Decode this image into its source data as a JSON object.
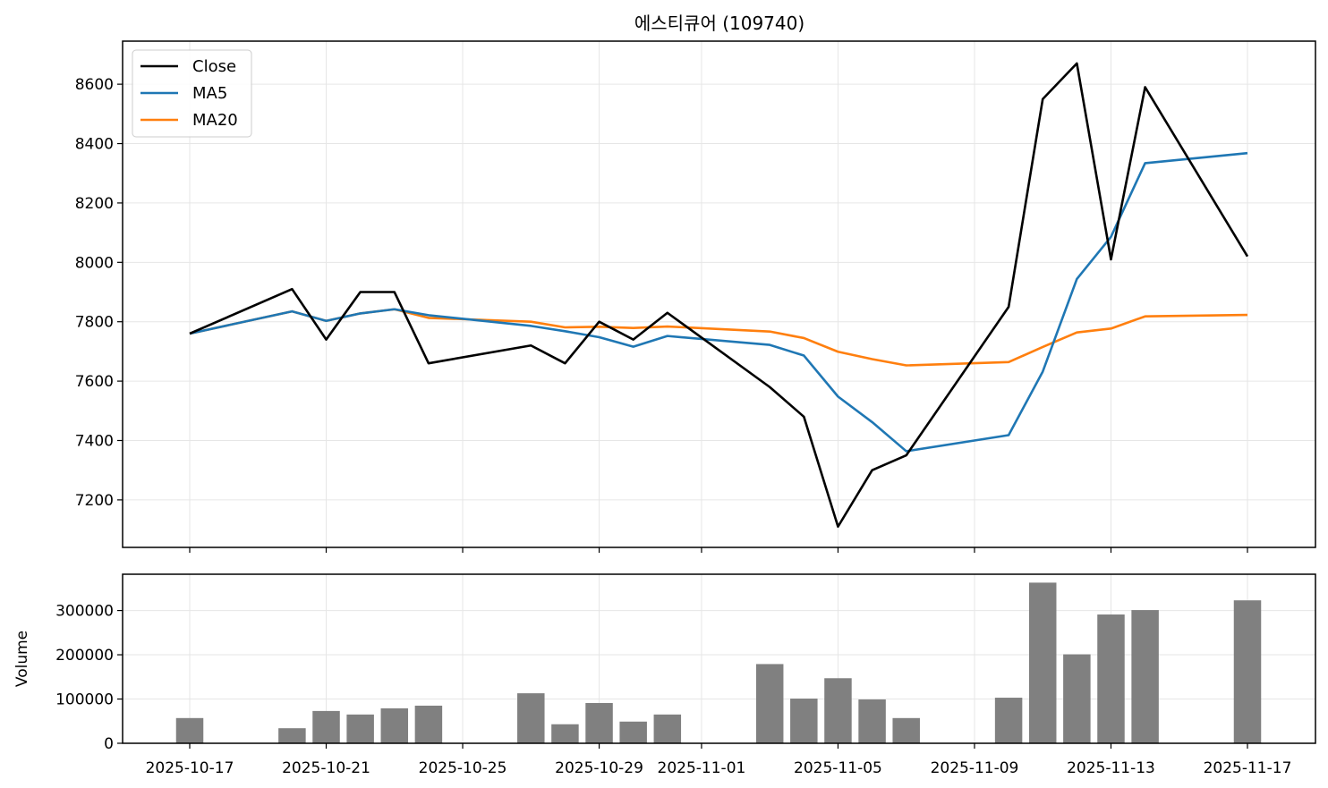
{
  "title": "에스티큐어 (109740)",
  "chart_data": [
    {
      "type": "line",
      "title": "에스티큐어 (109740)",
      "x": [
        "2025-10-17",
        "2025-10-20",
        "2025-10-21",
        "2025-10-22",
        "2025-10-23",
        "2025-10-24",
        "2025-10-27",
        "2025-10-28",
        "2025-10-29",
        "2025-10-30",
        "2025-10-31",
        "2025-11-03",
        "2025-11-04",
        "2025-11-05",
        "2025-11-06",
        "2025-11-07",
        "2025-11-10",
        "2025-11-11",
        "2025-11-12",
        "2025-11-13",
        "2025-11-14",
        "2025-11-17"
      ],
      "x_ticks": [
        "2025-10-17",
        "2025-10-21",
        "2025-10-25",
        "2025-10-29",
        "2025-11-01",
        "2025-11-05",
        "2025-11-09",
        "2025-11-13",
        "2025-11-17"
      ],
      "ylim": [
        7040,
        8745
      ],
      "y_ticks": [
        7200,
        7400,
        7600,
        7800,
        8000,
        8200,
        8400,
        8600
      ],
      "grid": true,
      "legend_position": "top-left",
      "series": [
        {
          "name": "Close",
          "color": "#000000",
          "values": [
            7760,
            7910,
            7740,
            7900,
            7900,
            7660,
            7720,
            7660,
            7800,
            7740,
            7830,
            7580,
            7480,
            7110,
            7300,
            7350,
            7850,
            8550,
            8670,
            8010,
            8590,
            8020
          ]
        },
        {
          "name": "MA5",
          "color": "#1f77b4",
          "values": [
            7760,
            7835,
            7803,
            7828,
            7842,
            7822,
            7786,
            7768,
            7748,
            7716,
            7752,
            7722,
            7686,
            7548,
            7462,
            7364,
            7418,
            7632,
            7944,
            8086,
            8334,
            8368
          ]
        },
        {
          "name": "MA20",
          "color": "#ff7f0e",
          "values": [
            7760,
            7835,
            7803,
            7828,
            7842,
            7813,
            7800,
            7781,
            7783,
            7779,
            7784,
            7767,
            7745,
            7699,
            7674,
            7653,
            7664,
            7715,
            7764,
            7777,
            7818,
            7823
          ]
        }
      ]
    },
    {
      "type": "bar",
      "ylabel": "Volume",
      "x": [
        "2025-10-17",
        "2025-10-20",
        "2025-10-21",
        "2025-10-22",
        "2025-10-23",
        "2025-10-24",
        "2025-10-27",
        "2025-10-28",
        "2025-10-29",
        "2025-10-30",
        "2025-10-31",
        "2025-11-03",
        "2025-11-04",
        "2025-11-05",
        "2025-11-06",
        "2025-11-07",
        "2025-11-10",
        "2025-11-11",
        "2025-11-12",
        "2025-11-13",
        "2025-11-14",
        "2025-11-17"
      ],
      "values": [
        57000,
        34000,
        73000,
        65000,
        79000,
        85000,
        113000,
        43000,
        91000,
        49000,
        65000,
        179000,
        101000,
        147000,
        99000,
        57000,
        103000,
        363000,
        201000,
        291000,
        301000,
        323000
      ],
      "ylim": [
        0,
        382000
      ],
      "y_ticks": [
        0,
        100000,
        200000,
        300000
      ],
      "color": "#808080",
      "grid": true
    }
  ]
}
